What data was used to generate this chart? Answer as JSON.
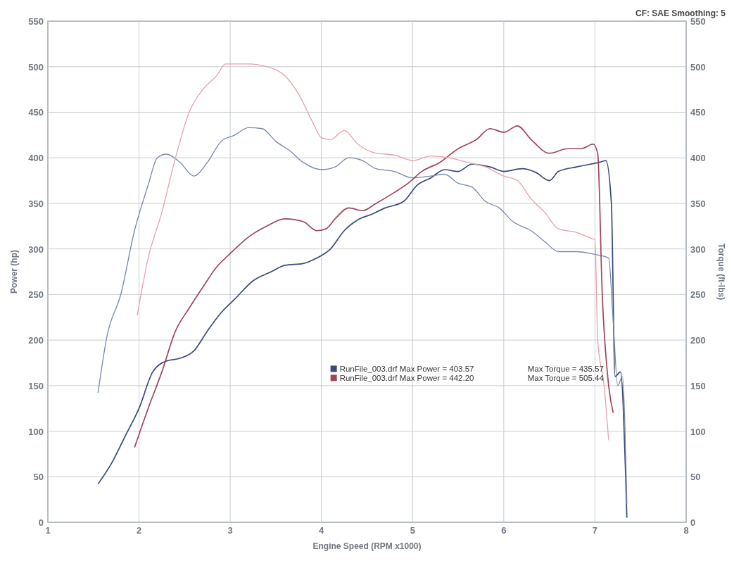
{
  "chart_data": {
    "type": "line",
    "xlabel": "Engine Speed (RPM x1000)",
    "ylabel": "Power (hp)",
    "y2label": "Torque (ft-lbs)",
    "annotations": [
      "CF: SAE  Smoothing: 5",
      "Max Torque = 435.57",
      "Max Torque = 505.44"
    ],
    "xlim": [
      1,
      8
    ],
    "xticks": [
      1,
      2,
      3,
      4,
      5,
      6,
      7,
      8
    ],
    "ylim": [
      0,
      550
    ],
    "yticks": [
      0,
      50,
      100,
      150,
      200,
      250,
      300,
      350,
      400,
      450,
      500,
      550
    ],
    "y2lim": [
      0,
      550
    ],
    "y2ticks": [
      0,
      50,
      100,
      150,
      200,
      250,
      300,
      350,
      400,
      450,
      500,
      550
    ],
    "grid": true,
    "legend": "bottom",
    "line_style": "solid",
    "series": [
      {
        "name": "RunFile_003.drf Max Power = 403.57",
        "color": "#3a4a78",
        "x": [
          1.55,
          1.7,
          1.85,
          2.0,
          2.15,
          2.3,
          2.45,
          2.6,
          2.75,
          2.9,
          3.05,
          3.25,
          3.45,
          3.6,
          3.8,
          3.95,
          4.1,
          4.25,
          4.4,
          4.55,
          4.7,
          4.9,
          5.05,
          5.2,
          5.35,
          5.5,
          5.65,
          5.85,
          6.0,
          6.2,
          6.35,
          6.5,
          6.6,
          6.8,
          6.95,
          7.05,
          7.12,
          7.18,
          7.22,
          7.28,
          7.35
        ],
        "values": [
          42,
          65,
          95,
          125,
          165,
          177,
          180,
          188,
          210,
          230,
          245,
          265,
          275,
          282,
          284,
          290,
          300,
          320,
          332,
          338,
          345,
          352,
          370,
          378,
          387,
          385,
          393,
          390,
          385,
          388,
          384,
          375,
          385,
          390,
          393,
          395,
          397,
          350,
          160,
          165,
          5
        ]
      },
      {
        "color": "#7688a8",
        "axis": "y2",
        "x": [
          1.55,
          1.65,
          1.8,
          1.95,
          2.1,
          2.2,
          2.3,
          2.45,
          2.6,
          2.75,
          2.9,
          3.05,
          3.2,
          3.35,
          3.5,
          3.65,
          3.8,
          4.0,
          4.15,
          4.3,
          4.45,
          4.6,
          4.8,
          5.0,
          5.2,
          5.35,
          5.5,
          5.65,
          5.8,
          5.95,
          6.1,
          6.3,
          6.45,
          6.6,
          6.8,
          6.95,
          7.05,
          7.15,
          7.2,
          7.25,
          7.3,
          7.35
        ],
        "values": [
          142,
          205,
          250,
          320,
          370,
          400,
          404,
          395,
          380,
          395,
          418,
          425,
          433,
          432,
          418,
          408,
          395,
          387,
          390,
          400,
          397,
          388,
          385,
          378,
          380,
          382,
          372,
          368,
          352,
          345,
          330,
          320,
          308,
          297,
          297,
          295,
          293,
          290,
          220,
          150,
          160,
          20
        ]
      },
      {
        "name": "RunFile_003.drf Max Power = 442.20",
        "color": "#a0455a",
        "x": [
          1.95,
          2.1,
          2.25,
          2.4,
          2.55,
          2.7,
          2.85,
          3.0,
          3.2,
          3.4,
          3.6,
          3.8,
          3.95,
          4.05,
          4.15,
          4.3,
          4.45,
          4.6,
          4.8,
          4.95,
          5.1,
          5.3,
          5.5,
          5.7,
          5.85,
          6.0,
          6.15,
          6.3,
          6.5,
          6.7,
          6.85,
          6.98,
          7.03,
          7.08,
          7.15,
          7.2
        ],
        "values": [
          82,
          125,
          165,
          210,
          235,
          258,
          280,
          295,
          313,
          325,
          333,
          330,
          320,
          322,
          333,
          345,
          342,
          350,
          362,
          372,
          385,
          395,
          410,
          420,
          432,
          428,
          435,
          420,
          405,
          410,
          410,
          415,
          405,
          250,
          150,
          120
        ]
      },
      {
        "color": "#e8a0aa",
        "axis": "y2",
        "x": [
          1.98,
          2.1,
          2.25,
          2.4,
          2.55,
          2.7,
          2.85,
          2.95,
          3.2,
          3.4,
          3.6,
          3.75,
          3.9,
          4.0,
          4.1,
          4.25,
          4.4,
          4.6,
          4.8,
          5.0,
          5.2,
          5.4,
          5.6,
          5.8,
          6.0,
          6.15,
          6.3,
          6.45,
          6.6,
          6.8,
          6.95,
          7.0,
          7.03,
          7.1,
          7.15
        ],
        "values": [
          227,
          290,
          340,
          400,
          450,
          475,
          490,
          503,
          503,
          500,
          490,
          470,
          440,
          422,
          420,
          430,
          415,
          405,
          403,
          397,
          402,
          400,
          395,
          390,
          380,
          375,
          355,
          340,
          322,
          318,
          312,
          310,
          200,
          150,
          90
        ]
      }
    ]
  }
}
